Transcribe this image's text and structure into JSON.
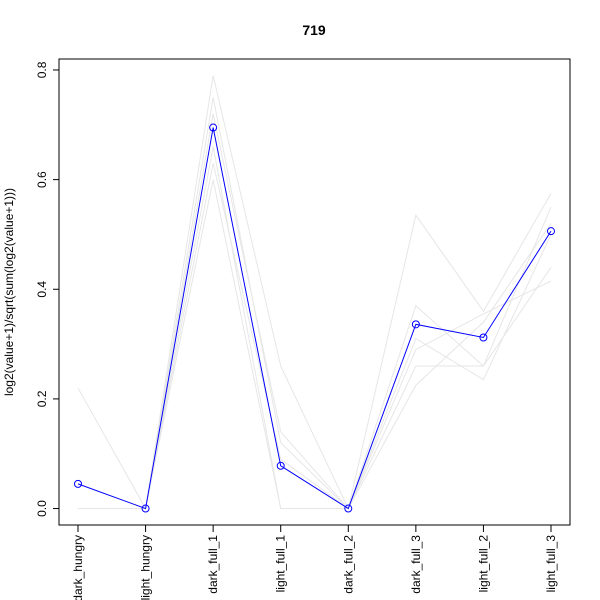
{
  "chart_data": {
    "type": "line",
    "title": "719",
    "xlabel": "",
    "ylabel": "log2(value+1)/sqrt(sum(log2(value+1)))",
    "categories": [
      "dark_hungry",
      "light_hungry",
      "dark_full_1",
      "light_full_1",
      "dark_full_2",
      "dark_full_3",
      "light_full_2",
      "light_full_3"
    ],
    "ylim": [
      -0.03,
      0.82
    ],
    "yticks": [
      0.0,
      0.2,
      0.4,
      0.6,
      0.8
    ],
    "ytick_labels": [
      "0.0",
      "0.2",
      "0.4",
      "0.6",
      "0.8"
    ],
    "grid": false,
    "series": [
      {
        "values": [
          0.045,
          0.0,
          0.695,
          0.078,
          0.0,
          0.336,
          0.312,
          0.506
        ],
        "color": "#0000ff",
        "markers": true
      },
      {
        "values": [
          0.22,
          0.0,
          0.79,
          0.26,
          0.0,
          0.535,
          0.36,
          0.575
        ],
        "color": "#e6e6e6",
        "markers": false
      },
      {
        "values": [
          0.0,
          0.0,
          0.75,
          0.12,
          0.0,
          0.37,
          0.26,
          0.55
        ],
        "color": "#e6e6e6",
        "markers": false
      },
      {
        "values": [
          0.0,
          0.0,
          0.66,
          0.0,
          0.0,
          0.26,
          0.26,
          0.44
        ],
        "color": "#e6e6e6",
        "markers": false
      },
      {
        "values": [
          0.0,
          0.0,
          0.63,
          0.09,
          0.0,
          0.29,
          0.355,
          0.415
        ],
        "color": "#e6e6e6",
        "markers": false
      },
      {
        "values": [
          0.0,
          0.0,
          0.6,
          0.0,
          0.0,
          0.225,
          0.34,
          0.52
        ],
        "color": "#e6e6e6",
        "markers": false
      },
      {
        "values": [
          0.0,
          0.0,
          0.72,
          0.14,
          0.0,
          0.31,
          0.235,
          0.5
        ],
        "color": "#e6e6e6",
        "markers": false
      }
    ]
  }
}
